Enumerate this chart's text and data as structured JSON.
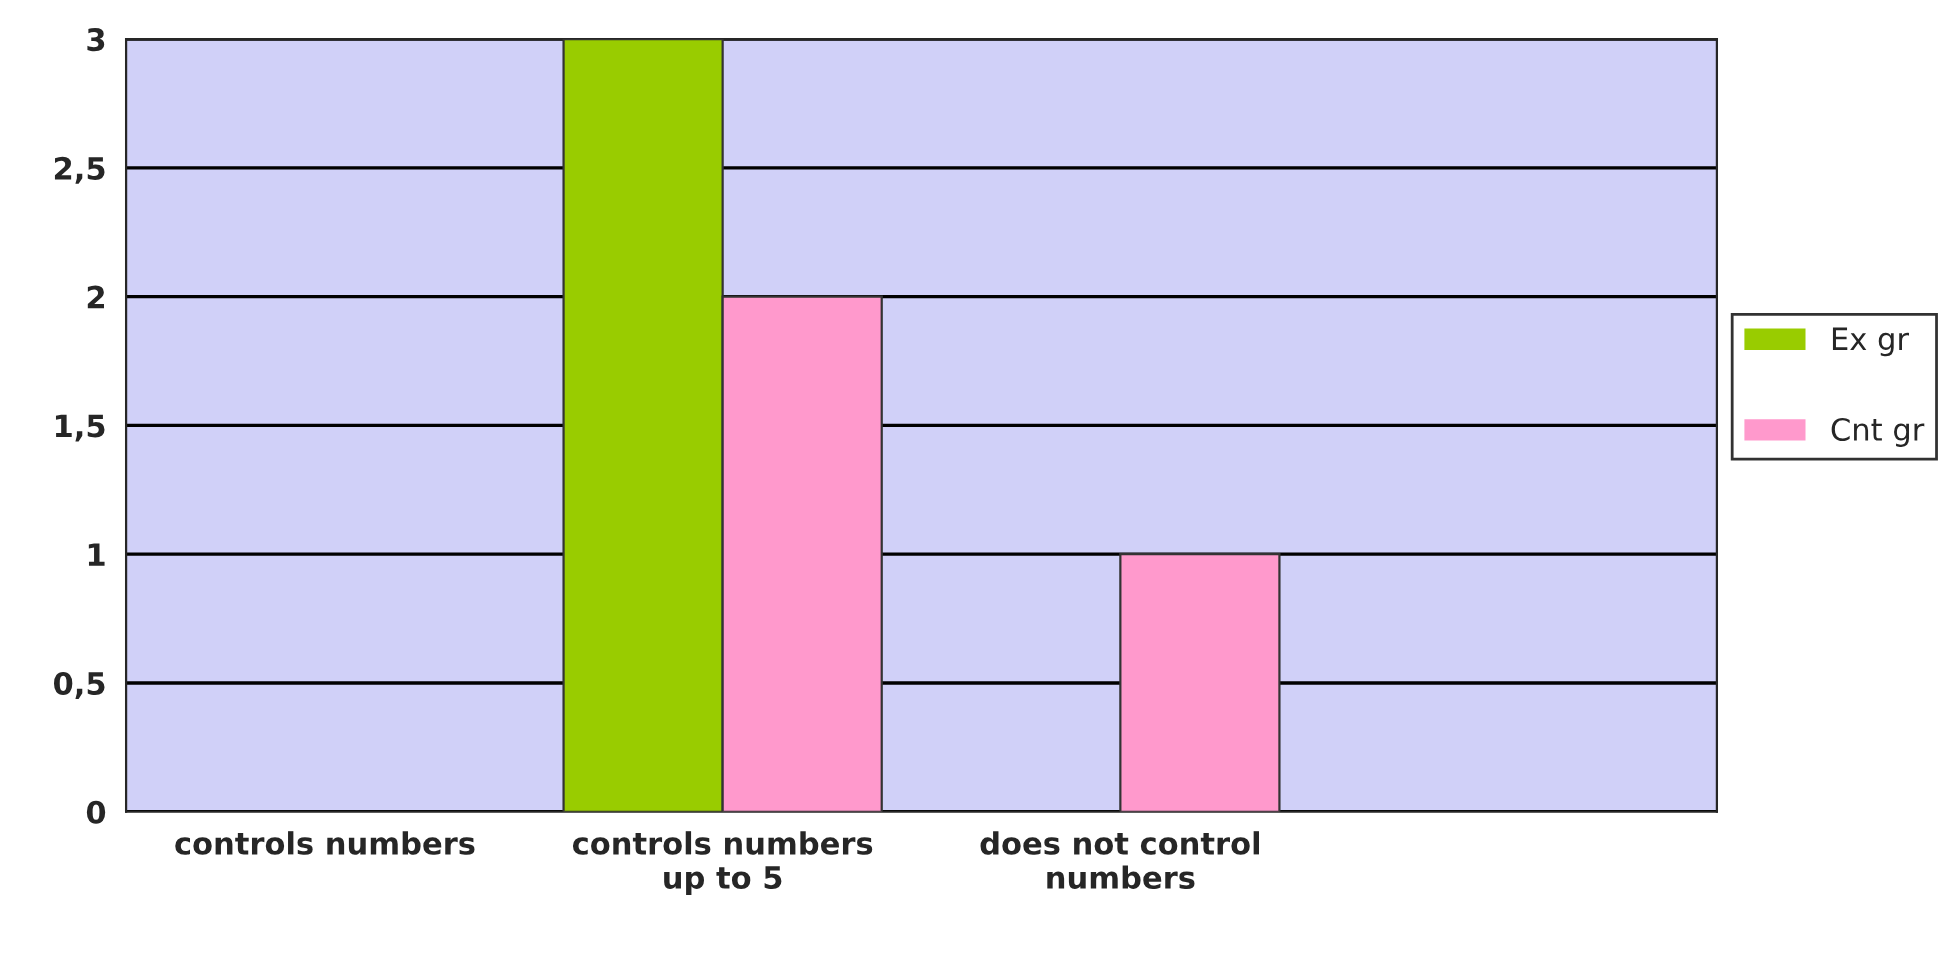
{
  "chart_data": {
    "type": "bar",
    "categories": [
      "controls numbers",
      "controls numbers\nup to 5",
      "does not control\nnumbers",
      null
    ],
    "series": [
      {
        "name": "Ex gr",
        "color": "#99cc00",
        "values": [
          0,
          3,
          0,
          0
        ]
      },
      {
        "name": "Cnt gr",
        "color": "#ff99cc",
        "values": [
          0,
          2,
          1,
          0
        ]
      }
    ],
    "ylim": [
      0,
      3
    ],
    "yticks": [
      0,
      {
        "value": 0.5,
        "label": "0,5"
      },
      1,
      {
        "value": 1.5,
        "label": "1,5"
      },
      2,
      {
        "value": 2.5,
        "label": "2,5"
      },
      3
    ],
    "grid": "y",
    "legend": "right"
  }
}
